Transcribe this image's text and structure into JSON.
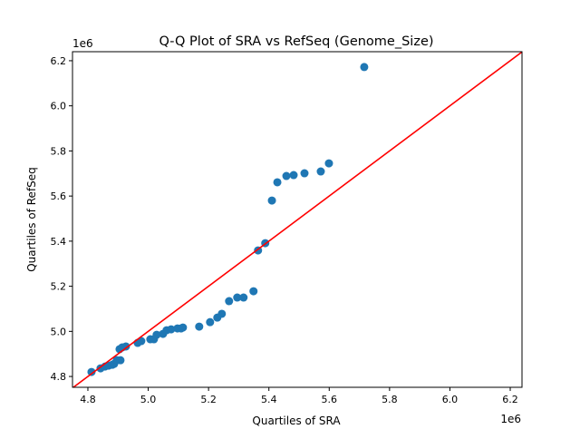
{
  "chart_data": {
    "type": "scatter",
    "title": "Q-Q Plot of SRA vs RefSeq (Genome_Size)",
    "xlabel": "Quartiles of SRA",
    "ylabel": "Quartiles of RefSeq",
    "x_offset_label": "1e6",
    "y_offset_label": "1e6",
    "xlim": [
      4.749,
      6.239
    ],
    "ylim": [
      4.752,
      6.24
    ],
    "xticks": [
      "4.8",
      "5.0",
      "5.2",
      "5.4",
      "5.6",
      "5.8",
      "6.0",
      "6.2"
    ],
    "yticks": [
      "4.8",
      "5.0",
      "5.2",
      "5.4",
      "5.6",
      "5.8",
      "6.0",
      "6.2"
    ],
    "grid": false,
    "point_color": "#1f77b4",
    "line_color": "#ff0000",
    "reference_line": "y = x",
    "x": [
      4.812,
      4.842,
      4.857,
      4.869,
      4.881,
      4.887,
      4.896,
      4.908,
      4.905,
      4.914,
      4.926,
      4.965,
      4.977,
      5.007,
      5.019,
      5.028,
      5.049,
      5.061,
      5.076,
      5.097,
      5.109,
      5.115,
      5.169,
      5.205,
      5.229,
      5.244,
      5.268,
      5.295,
      5.316,
      5.349,
      5.364,
      5.388,
      5.41,
      5.428,
      5.458,
      5.482,
      5.518,
      5.572,
      5.599,
      5.716
    ],
    "y": [
      4.82,
      4.836,
      4.844,
      4.848,
      4.852,
      4.856,
      4.872,
      4.872,
      4.921,
      4.929,
      4.933,
      4.949,
      4.957,
      4.965,
      4.965,
      4.985,
      4.989,
      5.005,
      5.009,
      5.013,
      5.013,
      5.017,
      5.021,
      5.041,
      5.061,
      5.078,
      5.134,
      5.15,
      5.15,
      5.178,
      5.359,
      5.391,
      5.58,
      5.661,
      5.689,
      5.693,
      5.701,
      5.709,
      5.745,
      6.172
    ]
  }
}
